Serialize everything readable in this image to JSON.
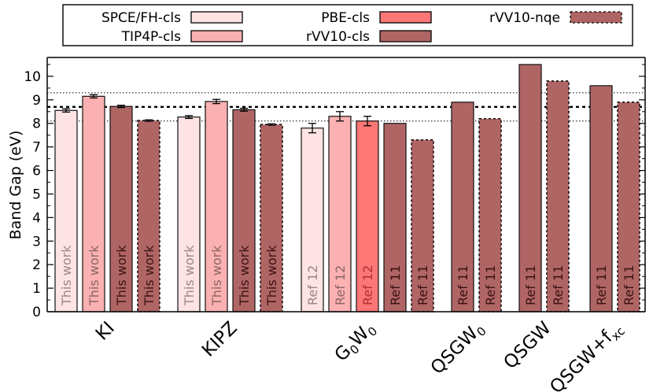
{
  "chart_data": {
    "type": "bar",
    "title": "",
    "xlabel": "",
    "ylabel": "Band Gap (eV)",
    "ylim": [
      0,
      10.8
    ],
    "yticks": [
      0,
      1,
      2,
      3,
      4,
      5,
      6,
      7,
      8,
      9,
      10
    ],
    "grid": false,
    "legend_position": "top",
    "styles": {
      "SPCE/FH-cls": {
        "fill": "#fde3e3",
        "dash": false,
        "text_color": "#9a8585"
      },
      "TIP4P-cls": {
        "fill": "#fbb1b1",
        "dash": false,
        "text_color": "#8a6565"
      },
      "PBE-cls": {
        "fill": "#fd7777",
        "dash": false,
        "text_color": "#b03030"
      },
      "rVV10-cls": {
        "fill": "#b06565",
        "dash": false,
        "text_color": "#3a1212"
      },
      "rVV10-nqe": {
        "fill": "#b06565",
        "dash": true,
        "text_color": "#3a1212"
      }
    },
    "legend": [
      "SPCE/FH-cls",
      "TIP4P-cls",
      "PBE-cls",
      "rVV10-cls",
      "rVV10-nqe"
    ],
    "reference_lines": [
      {
        "value": 8.7,
        "style": "dashed-thick"
      },
      {
        "value": 9.3,
        "style": "dotted-thin"
      },
      {
        "value": 8.1,
        "style": "dotted-thin"
      }
    ],
    "groups": [
      {
        "label": "KI",
        "sub": "",
        "bars": [
          {
            "series": "SPCE/FH-cls",
            "value": 8.55,
            "err": 0.07,
            "text": "This work"
          },
          {
            "series": "TIP4P-cls",
            "value": 9.15,
            "err": 0.07,
            "text": "This work"
          },
          {
            "series": "rVV10-cls",
            "value": 8.72,
            "err": 0.05,
            "text": "This work"
          },
          {
            "series": "rVV10-nqe",
            "value": 8.12,
            "err": 0.03,
            "text": "This work"
          }
        ]
      },
      {
        "label": "KIPZ",
        "sub": "",
        "bars": [
          {
            "series": "SPCE/FH-cls",
            "value": 8.27,
            "err": 0.06,
            "text": "This work"
          },
          {
            "series": "TIP4P-cls",
            "value": 8.93,
            "err": 0.09,
            "text": "This work"
          },
          {
            "series": "rVV10-cls",
            "value": 8.58,
            "err": 0.06,
            "text": "This work"
          },
          {
            "series": "rVV10-nqe",
            "value": 7.95,
            "err": 0.03,
            "text": "This work"
          }
        ]
      },
      {
        "label": "G",
        "sub": "0",
        "label2": "W",
        "sub2": "0",
        "bars": [
          {
            "series": "SPCE/FH-cls",
            "value": 7.8,
            "err": 0.2,
            "text": "Ref 12"
          },
          {
            "series": "TIP4P-cls",
            "value": 8.3,
            "err": 0.2,
            "text": "Ref 12"
          },
          {
            "series": "PBE-cls",
            "value": 8.1,
            "err": 0.2,
            "text": "Ref 12"
          },
          {
            "series": "rVV10-cls",
            "value": 8.0,
            "err": 0,
            "text": "Ref 11"
          },
          {
            "series": "rVV10-nqe",
            "value": 7.3,
            "err": 0,
            "text": "Ref 11"
          }
        ]
      },
      {
        "label": "QSGW",
        "sub": "0",
        "bars": [
          {
            "series": "rVV10-cls",
            "value": 8.9,
            "err": 0,
            "text": "Ref 11"
          },
          {
            "series": "rVV10-nqe",
            "value": 8.2,
            "err": 0,
            "text": "Ref 11"
          }
        ]
      },
      {
        "label": "QSGW",
        "sub": "",
        "bars": [
          {
            "series": "rVV10-cls",
            "value": 10.5,
            "err": 0,
            "text": "Ref 11"
          },
          {
            "series": "rVV10-nqe",
            "value": 9.8,
            "err": 0,
            "text": "Ref 11"
          }
        ]
      },
      {
        "label": "QSGW+f",
        "sub": "xc",
        "bars": [
          {
            "series": "rVV10-cls",
            "value": 9.6,
            "err": 0,
            "text": "Ref 11"
          },
          {
            "series": "rVV10-nqe",
            "value": 8.9,
            "err": 0,
            "text": "Ref 11"
          }
        ]
      }
    ]
  }
}
